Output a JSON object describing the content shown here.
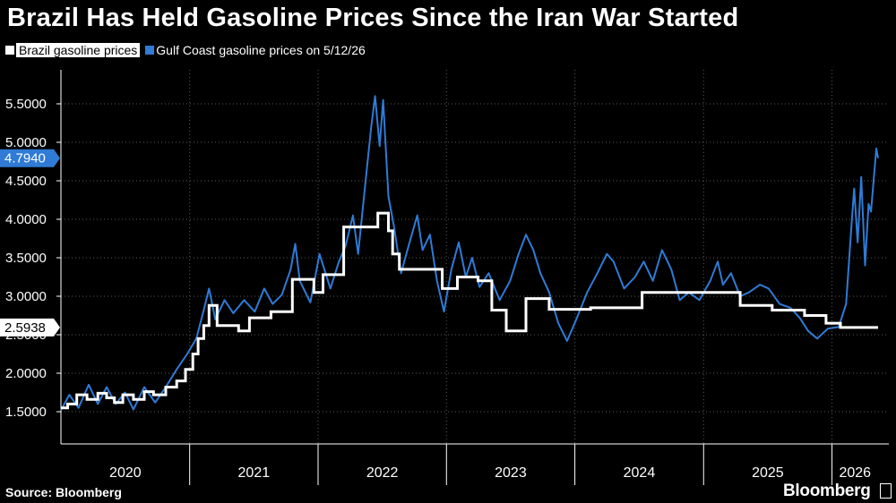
{
  "title": "Brazil Has Held Gasoline Prices Since the Iran War Started",
  "source": "Source: Bloomberg",
  "brand": "Bloomberg",
  "colors": {
    "background": "#000000",
    "brazil": "#ffffff",
    "gulf": "#2f7bd6",
    "grid": "#5a5a5a",
    "text": "#ffffff"
  },
  "chart_data": {
    "type": "line",
    "legend_position": "top-left",
    "grid": true,
    "ylim": [
      1.0,
      6.0
    ],
    "y_ticks": [
      "1.5000",
      "2.0000",
      "2.5000",
      "3.0000",
      "3.5000",
      "4.0000",
      "4.5000",
      "5.0000",
      "5.5000"
    ],
    "x_ticks": [
      "2020",
      "2021",
      "2022",
      "2023",
      "2024",
      "2025",
      "2026"
    ],
    "xlim": [
      "2020-01-01",
      "2026-05-12"
    ],
    "last_value_labels": [
      {
        "series": "Gulf Coast gasoline prices on 5/12/26",
        "value": "4.7940"
      },
      {
        "series": "Brazil gasoline prices",
        "value": "2.5938"
      }
    ],
    "series": [
      {
        "name": "Brazil gasoline prices",
        "step": true,
        "points": [
          [
            "2020-01-01",
            1.55
          ],
          [
            "2020-01-20",
            1.6
          ],
          [
            "2020-02-15",
            1.72
          ],
          [
            "2020-03-15",
            1.66
          ],
          [
            "2020-04-15",
            1.74
          ],
          [
            "2020-05-10",
            1.68
          ],
          [
            "2020-06-01",
            1.62
          ],
          [
            "2020-06-25",
            1.72
          ],
          [
            "2020-07-25",
            1.66
          ],
          [
            "2020-08-25",
            1.76
          ],
          [
            "2020-09-20",
            1.72
          ],
          [
            "2020-10-25",
            1.82
          ],
          [
            "2020-11-25",
            1.9
          ],
          [
            "2020-12-20",
            2.05
          ],
          [
            "2021-01-10",
            2.25
          ],
          [
            "2021-01-25",
            2.45
          ],
          [
            "2021-02-10",
            2.62
          ],
          [
            "2021-02-25",
            2.88
          ],
          [
            "2021-03-20",
            2.62
          ],
          [
            "2021-04-20",
            2.62
          ],
          [
            "2021-05-20",
            2.55
          ],
          [
            "2021-06-20",
            2.72
          ],
          [
            "2021-08-20",
            2.8
          ],
          [
            "2021-10-20",
            3.22
          ],
          [
            "2021-12-20",
            3.05
          ],
          [
            "2022-01-15",
            3.28
          ],
          [
            "2022-03-15",
            3.9
          ],
          [
            "2022-06-20",
            4.08
          ],
          [
            "2022-07-20",
            3.85
          ],
          [
            "2022-08-01",
            3.55
          ],
          [
            "2022-08-20",
            3.35
          ],
          [
            "2022-12-20",
            3.1
          ],
          [
            "2023-02-01",
            3.25
          ],
          [
            "2023-04-01",
            3.2
          ],
          [
            "2023-05-10",
            2.82
          ],
          [
            "2023-06-20",
            2.55
          ],
          [
            "2023-08-15",
            2.97
          ],
          [
            "2023-10-20",
            2.83
          ],
          [
            "2024-02-15",
            2.85
          ],
          [
            "2024-07-10",
            3.05
          ],
          [
            "2025-04-15",
            2.88
          ],
          [
            "2025-07-15",
            2.82
          ],
          [
            "2025-10-15",
            2.75
          ],
          [
            "2025-12-15",
            2.65
          ],
          [
            "2026-01-25",
            2.5938
          ],
          [
            "2026-05-12",
            2.5938
          ]
        ]
      },
      {
        "name": "Gulf Coast gasoline prices on 5/12/26",
        "step": false,
        "points": [
          [
            "2020-01-01",
            1.52
          ],
          [
            "2020-01-25",
            1.72
          ],
          [
            "2020-02-20",
            1.55
          ],
          [
            "2020-03-20",
            1.85
          ],
          [
            "2020-04-15",
            1.6
          ],
          [
            "2020-05-10",
            1.82
          ],
          [
            "2020-06-05",
            1.6
          ],
          [
            "2020-07-01",
            1.75
          ],
          [
            "2020-07-25",
            1.53
          ],
          [
            "2020-08-25",
            1.82
          ],
          [
            "2020-09-25",
            1.62
          ],
          [
            "2020-10-25",
            1.82
          ],
          [
            "2020-11-25",
            2.05
          ],
          [
            "2020-12-25",
            2.25
          ],
          [
            "2021-01-20",
            2.45
          ],
          [
            "2021-02-10",
            2.82
          ],
          [
            "2021-02-25",
            3.1
          ],
          [
            "2021-03-15",
            2.7
          ],
          [
            "2021-04-10",
            2.95
          ],
          [
            "2021-05-05",
            2.78
          ],
          [
            "2021-06-05",
            2.95
          ],
          [
            "2021-07-05",
            2.8
          ],
          [
            "2021-08-01",
            3.1
          ],
          [
            "2021-08-25",
            2.9
          ],
          [
            "2021-09-20",
            3.02
          ],
          [
            "2021-10-15",
            3.35
          ],
          [
            "2021-10-28",
            3.68
          ],
          [
            "2021-11-10",
            3.2
          ],
          [
            "2021-12-10",
            2.92
          ],
          [
            "2022-01-05",
            3.55
          ],
          [
            "2022-02-05",
            3.1
          ],
          [
            "2022-03-01",
            3.45
          ],
          [
            "2022-03-20",
            3.65
          ],
          [
            "2022-04-10",
            4.05
          ],
          [
            "2022-04-25",
            3.55
          ],
          [
            "2022-05-15",
            4.45
          ],
          [
            "2022-06-01",
            5.2
          ],
          [
            "2022-06-12",
            5.6
          ],
          [
            "2022-06-25",
            4.95
          ],
          [
            "2022-07-05",
            5.55
          ],
          [
            "2022-07-20",
            4.3
          ],
          [
            "2022-08-05",
            3.9
          ],
          [
            "2022-08-25",
            3.3
          ],
          [
            "2022-09-15",
            3.65
          ],
          [
            "2022-10-10",
            4.05
          ],
          [
            "2022-10-25",
            3.6
          ],
          [
            "2022-11-15",
            3.8
          ],
          [
            "2022-12-05",
            3.2
          ],
          [
            "2022-12-25",
            2.8
          ],
          [
            "2023-01-15",
            3.35
          ],
          [
            "2023-02-05",
            3.7
          ],
          [
            "2023-02-25",
            3.25
          ],
          [
            "2023-03-15",
            3.5
          ],
          [
            "2023-04-05",
            3.12
          ],
          [
            "2023-05-01",
            3.3
          ],
          [
            "2023-06-01",
            2.95
          ],
          [
            "2023-07-01",
            3.2
          ],
          [
            "2023-07-25",
            3.55
          ],
          [
            "2023-08-15",
            3.8
          ],
          [
            "2023-09-05",
            3.6
          ],
          [
            "2023-09-25",
            3.3
          ],
          [
            "2023-10-20",
            3.05
          ],
          [
            "2023-11-15",
            2.65
          ],
          [
            "2023-12-10",
            2.42
          ],
          [
            "2024-01-05",
            2.7
          ],
          [
            "2024-02-05",
            3.05
          ],
          [
            "2024-03-05",
            3.3
          ],
          [
            "2024-04-01",
            3.55
          ],
          [
            "2024-04-20",
            3.45
          ],
          [
            "2024-05-20",
            3.1
          ],
          [
            "2024-06-20",
            3.25
          ],
          [
            "2024-07-15",
            3.45
          ],
          [
            "2024-08-10",
            3.2
          ],
          [
            "2024-09-05",
            3.6
          ],
          [
            "2024-10-01",
            3.35
          ],
          [
            "2024-10-25",
            2.95
          ],
          [
            "2024-11-20",
            3.05
          ],
          [
            "2024-12-20",
            2.95
          ],
          [
            "2025-01-20",
            3.2
          ],
          [
            "2025-02-10",
            3.45
          ],
          [
            "2025-02-25",
            3.15
          ],
          [
            "2025-03-20",
            3.3
          ],
          [
            "2025-04-15",
            3.0
          ],
          [
            "2025-05-10",
            3.05
          ],
          [
            "2025-06-10",
            3.15
          ],
          [
            "2025-07-05",
            3.1
          ],
          [
            "2025-08-05",
            2.9
          ],
          [
            "2025-09-05",
            2.85
          ],
          [
            "2025-10-01",
            2.72
          ],
          [
            "2025-10-25",
            2.55
          ],
          [
            "2025-11-20",
            2.45
          ],
          [
            "2025-12-20",
            2.58
          ],
          [
            "2026-01-20",
            2.6
          ],
          [
            "2026-02-10",
            2.9
          ],
          [
            "2026-02-25",
            3.9
          ],
          [
            "2026-03-05",
            4.4
          ],
          [
            "2026-03-15",
            3.7
          ],
          [
            "2026-03-25",
            4.55
          ],
          [
            "2026-04-05",
            3.4
          ],
          [
            "2026-04-15",
            4.2
          ],
          [
            "2026-04-22",
            4.1
          ],
          [
            "2026-05-01",
            4.6
          ],
          [
            "2026-05-07",
            4.92
          ],
          [
            "2026-05-12",
            4.794
          ]
        ]
      }
    ]
  }
}
